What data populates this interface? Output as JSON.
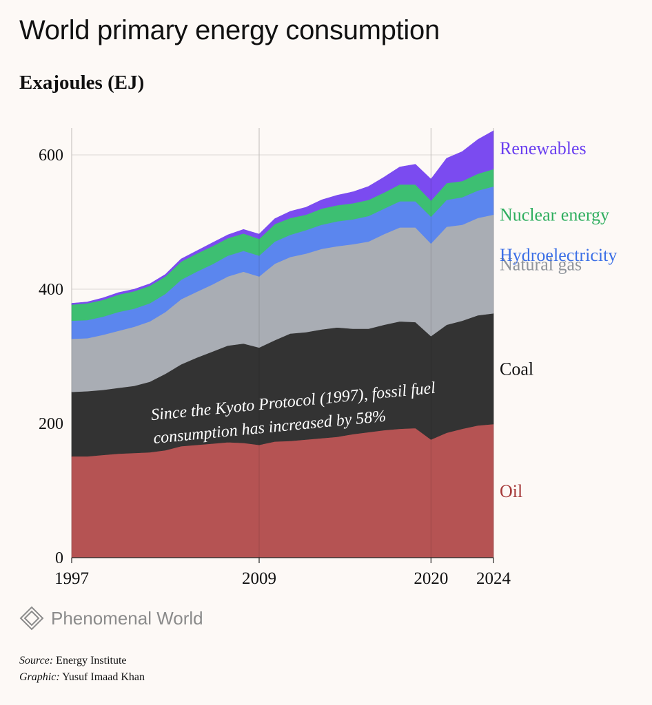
{
  "header": {
    "title": "World primary energy consumption",
    "subtitle": "Exajoules (EJ)"
  },
  "chart_data": {
    "type": "area",
    "stacked": true,
    "x": [
      1997,
      1998,
      1999,
      2000,
      2001,
      2002,
      2003,
      2004,
      2005,
      2006,
      2007,
      2008,
      2009,
      2010,
      2011,
      2012,
      2013,
      2014,
      2015,
      2016,
      2017,
      2018,
      2019,
      2020,
      2021,
      2022,
      2023,
      2024
    ],
    "x_ticks": [
      "1997",
      "2009",
      "2020",
      "2024"
    ],
    "y_ticks": [
      "0",
      "200",
      "400",
      "600"
    ],
    "ylim": [
      0,
      640
    ],
    "series": [
      {
        "name": "Oil",
        "color": "#b55353",
        "label_color": "#a63a3a",
        "values": [
          151,
          151,
          153,
          155,
          156,
          157,
          160,
          166,
          168,
          170,
          172,
          171,
          168,
          173,
          174,
          176,
          178,
          180,
          184,
          187,
          190,
          192,
          193,
          176,
          186,
          192,
          197,
          199
        ]
      },
      {
        "name": "Coal",
        "color": "#333333",
        "label_color": "#111111",
        "values": [
          96,
          97,
          97,
          98,
          100,
          105,
          114,
          122,
          130,
          137,
          144,
          148,
          145,
          151,
          160,
          160,
          162,
          163,
          157,
          154,
          157,
          160,
          158,
          154,
          161,
          161,
          164,
          165
        ]
      },
      {
        "name": "Natural gas",
        "color": "#a9adb4",
        "label_color": "#8f949b",
        "values": [
          79,
          79,
          82,
          85,
          88,
          90,
          92,
          97,
          98,
          100,
          103,
          107,
          106,
          114,
          114,
          117,
          120,
          121,
          126,
          130,
          135,
          140,
          141,
          138,
          146,
          143,
          145,
          147
        ]
      },
      {
        "name": "Hydroelectricity",
        "color": "#5b86ee",
        "label_color": "#3c6fe6",
        "values": [
          27,
          27,
          27,
          28,
          27,
          27,
          27,
          29,
          30,
          30,
          31,
          31,
          31,
          33,
          33,
          35,
          36,
          37,
          37,
          38,
          38,
          39,
          39,
          40,
          40,
          41,
          41,
          42
        ]
      },
      {
        "name": "Nuclear energy",
        "color": "#3dbf72",
        "label_color": "#2fae5f",
        "values": [
          24,
          25,
          25,
          26,
          26,
          26,
          26,
          27,
          27,
          27,
          26,
          26,
          25,
          26,
          25,
          23,
          24,
          24,
          24,
          24,
          24,
          25,
          25,
          24,
          25,
          24,
          25,
          26
        ]
      },
      {
        "name": "Renewables",
        "color": "#7b4bf0",
        "label_color": "#6a3ff0",
        "values": [
          2,
          2,
          3,
          3,
          3,
          3,
          3,
          4,
          4,
          5,
          5,
          6,
          7,
          8,
          10,
          11,
          13,
          15,
          17,
          20,
          23,
          26,
          30,
          32,
          37,
          44,
          51,
          57
        ]
      }
    ],
    "annotation": "Since the Kyoto Protocol (1997), fossil fuel consumption has increased by 58%",
    "annotation_lines": [
      "Since the Kyoto Protocol (1997), fossil fuel",
      "consumption has increased by 58%"
    ]
  },
  "footer": {
    "logo_text": "Phenomenal World",
    "source_label": "Source:",
    "source_value": "Energy Institute",
    "graphic_label": "Graphic:",
    "graphic_value": "Yusuf Imaad Khan"
  }
}
